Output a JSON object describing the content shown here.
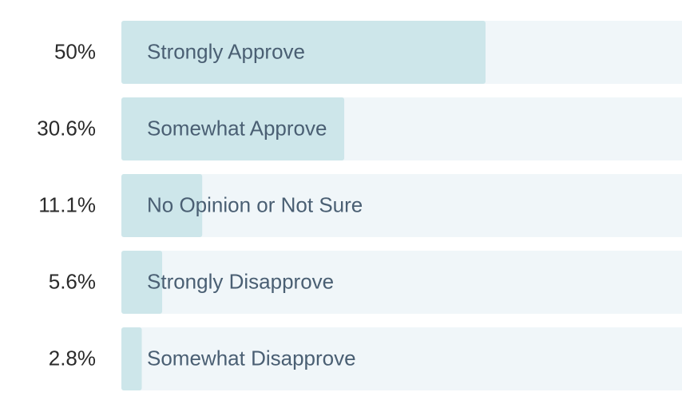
{
  "chart_data": {
    "type": "bar",
    "orientation": "horizontal",
    "categories": [
      "Strongly Approve",
      "Somewhat Approve",
      "No Opinion or Not Sure",
      "Strongly Disapprove",
      "Somewhat Disapprove"
    ],
    "values": [
      50,
      30.6,
      11.1,
      5.6,
      2.8
    ],
    "value_labels": [
      "50%",
      "30.6%",
      "11.1%",
      "5.6%",
      "2.8%"
    ],
    "color": "#cde6ea",
    "track_color": "#f0f6f9"
  }
}
